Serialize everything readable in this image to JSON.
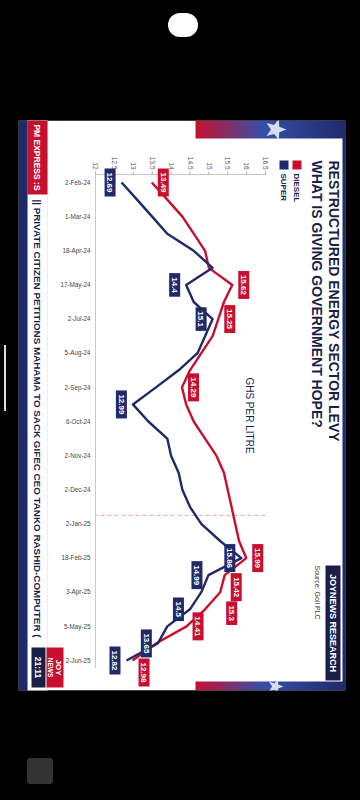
{
  "header": {
    "title": "RESTRUCTURED ENERGY SECTOR LEVY",
    "subtitle": "WHAT IS GIVING GOVERNMENT HOPE?",
    "badge": "JOYNEWS RESEARCH",
    "source": "Source: Goil PLC"
  },
  "chart_data": {
    "type": "line",
    "subtitle": "GHS PER LITRE",
    "categories": [
      "2-Feb-24",
      null,
      "1-Mar-24",
      null,
      "18-Apr-24",
      null,
      "17-May-24",
      null,
      "2-Jul-24",
      null,
      "5-Aug-24",
      null,
      "2-Sep-24",
      null,
      "6-Oct-24",
      null,
      "2-Nov-24",
      null,
      "2-Dec-24",
      null,
      "2-Jan-25",
      null,
      "18-Feb-25",
      null,
      "3-Apr-25",
      null,
      "5-May-25",
      null,
      "2-Jun-25"
    ],
    "series": [
      {
        "name": "DIESEL",
        "color": "#c8102e",
        "values": [
          13.49,
          13.9,
          14.3,
          14.6,
          14.9,
          15.0,
          15.62,
          15.4,
          15.25,
          15.1,
          14.8,
          14.5,
          14.29,
          14.4,
          14.6,
          14.9,
          15.2,
          15.4,
          15.5,
          15.6,
          15.7,
          15.8,
          15.99,
          15.42,
          15.3,
          14.9,
          14.41,
          13.6,
          12.98
        ],
        "value_labels": [
          "13.49",
          null,
          null,
          null,
          null,
          null,
          "15.62",
          null,
          "15.25",
          null,
          null,
          null,
          "14.29",
          null,
          null,
          null,
          null,
          null,
          null,
          null,
          null,
          null,
          "15.99",
          "15.42",
          "15.3",
          null,
          "14.41",
          null,
          "12.98"
        ]
      },
      {
        "name": "SUPER",
        "color": "#1f2a6b",
        "values": [
          12.69,
          13.1,
          13.5,
          13.9,
          14.6,
          15.1,
          14.4,
          14.6,
          15.1,
          14.9,
          14.7,
          14.2,
          13.6,
          12.99,
          13.4,
          13.9,
          14.0,
          14.2,
          14.3,
          14.5,
          14.8,
          15.3,
          15.86,
          14.99,
          14.8,
          14.5,
          13.9,
          13.65,
          12.82
        ],
        "value_labels": [
          "12.69",
          null,
          null,
          null,
          null,
          null,
          "14.4",
          null,
          "15.1",
          null,
          null,
          null,
          null,
          "12.99",
          null,
          null,
          null,
          null,
          null,
          null,
          null,
          null,
          "15.86",
          "14.99",
          null,
          "14.5",
          null,
          "13.65",
          "12.82"
        ]
      }
    ],
    "ylim": [
      12,
      16.5
    ],
    "yticks": [
      12,
      12.5,
      13,
      13.5,
      14,
      14.5,
      15,
      15.5,
      16,
      16.5
    ],
    "grid": false,
    "legend": "top-left",
    "data_labels": true
  },
  "ticker": {
    "label": "PM EXPRESS :S",
    "text": "|| PRIVATE CITIZEN PETITIONS MAHAMA TO SACK GIFEC CEO TANKO RASHID-COMPUTER (",
    "logo_top": "JOY",
    "logo_bottom": "NEWS",
    "time": "21:11"
  }
}
